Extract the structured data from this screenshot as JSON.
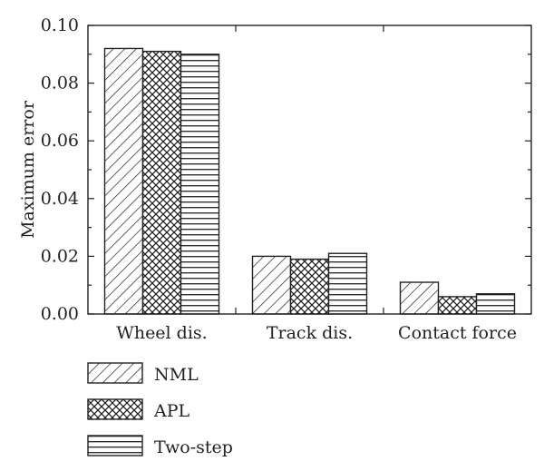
{
  "chart_data": {
    "type": "bar",
    "ylabel": "Maximum error",
    "xlabel": "",
    "ylim": [
      0,
      0.1
    ],
    "yticks": [
      "0.00",
      "0.02",
      "0.04",
      "0.06",
      "0.08",
      "0.10"
    ],
    "categories": [
      "Wheel dis.",
      "Track dis.",
      "Contact force"
    ],
    "series": [
      {
        "name": "NML",
        "pattern": "diagonal-hatch",
        "values": [
          0.092,
          0.02,
          0.011
        ]
      },
      {
        "name": "APL",
        "pattern": "cross-hatch",
        "values": [
          0.091,
          0.019,
          0.006
        ]
      },
      {
        "name": "Two-step",
        "pattern": "horizontal-lines",
        "values": [
          0.09,
          0.021,
          0.007
        ]
      }
    ],
    "grid": false,
    "legend_position": "bottom-left"
  }
}
